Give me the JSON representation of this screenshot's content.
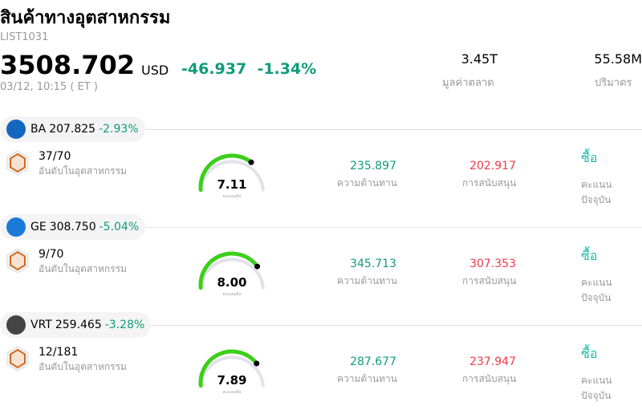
{
  "header": {
    "title": "สินค้าทางอุตสาหกรรม",
    "code": "LIST1031",
    "price": "3508.702",
    "currency": "USD",
    "change": "-46.937",
    "change_pct": "-1.34%",
    "time": "03/12, 10:15  ( ET )",
    "market_cap": {
      "value": "3.45T",
      "label": "มูลค่าตลาด"
    },
    "volume": {
      "value": "55.58M",
      "label": "ปริมาตร"
    }
  },
  "colors": {
    "down": "#0f9b7a",
    "support": "#f03a4a",
    "gauge": "#3ccf1a",
    "buy": "#1fb8a8"
  },
  "stocks": [
    {
      "ticker": "BA",
      "price": "207.825",
      "change_pct": "-2.93%",
      "rank": "37/70",
      "rank_label": "อันดับในอุตสาหกรรม",
      "score": 7.11,
      "score_text": "7.11",
      "score_label": "คะแนนหุ้น",
      "resistance": "235.897",
      "resistance_label": "ความต้านทาน",
      "support": "202.917",
      "support_label": "การสนับสนุน",
      "rating": "ซื้อ",
      "rating_label": "คะแนนปัจจุบัน",
      "logo_color": "#1466c0"
    },
    {
      "ticker": "GE",
      "price": "308.750",
      "change_pct": "-5.04%",
      "rank": "9/70",
      "rank_label": "อันดับในอุตสาหกรรม",
      "score": 8.0,
      "score_text": "8.00",
      "score_label": "คะแนนหุ้น",
      "resistance": "345.713",
      "resistance_label": "ความต้านทาน",
      "support": "307.353",
      "support_label": "การสนับสนุน",
      "rating": "ซื้อ",
      "rating_label": "คะแนนปัจจุบัน",
      "logo_color": "#1a7ad8"
    },
    {
      "ticker": "VRT",
      "price": "259.465",
      "change_pct": "-3.28%",
      "rank": "12/181",
      "rank_label": "อันดับในอุตสาหกรรม",
      "score": 7.89,
      "score_text": "7.89",
      "score_label": "คะแนนหุ้น",
      "resistance": "287.677",
      "resistance_label": "ความต้านทาน",
      "support": "237.947",
      "support_label": "การสนับสนุน",
      "rating": "ซื้อ",
      "rating_label": "คะแนนปัจจุบัน",
      "logo_color": "#444444"
    }
  ]
}
